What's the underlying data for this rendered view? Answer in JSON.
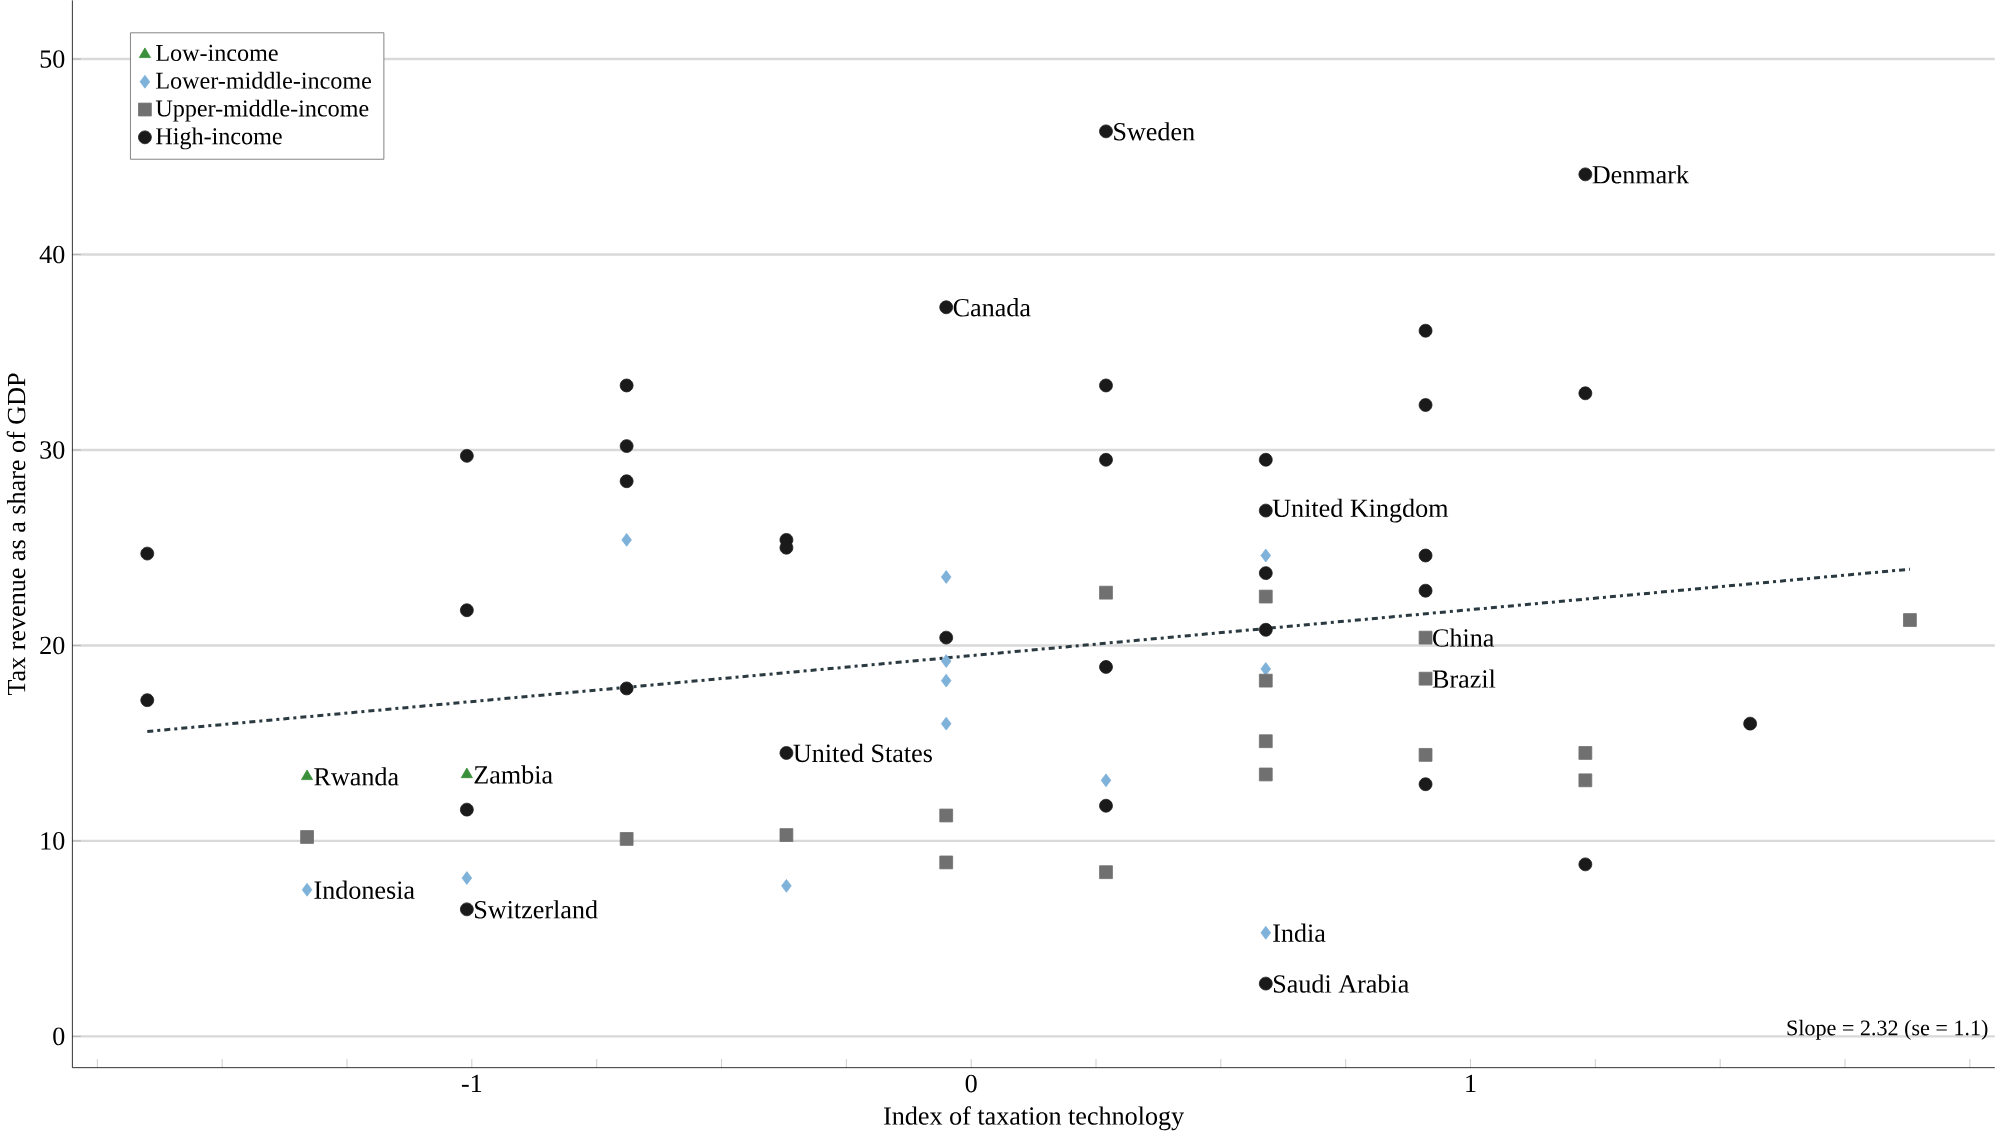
{
  "chart_data": {
    "type": "scatter",
    "xlabel": "Index of taxation technology",
    "ylabel": "Tax revenue as a share of GDP",
    "xlim": [
      -1.8,
      2.05
    ],
    "ylim": [
      -1.6,
      53
    ],
    "xticks": [
      {
        "value": -1.75,
        "label": null
      },
      {
        "value": -1.5,
        "label": null
      },
      {
        "value": -1.25,
        "label": null
      },
      -1,
      {
        "value": -0.75,
        "label": null
      },
      {
        "value": -0.5,
        "label": null
      },
      {
        "value": -0.25,
        "label": null
      },
      0,
      {
        "value": 0.25,
        "label": null
      },
      {
        "value": 0.5,
        "label": null
      },
      {
        "value": 0.75,
        "label": null
      },
      1,
      {
        "value": 1.25,
        "label": null
      },
      {
        "value": 1.5,
        "label": null
      },
      {
        "value": 1.75,
        "label": null
      },
      {
        "value": 2,
        "label": null
      }
    ],
    "yticks": [
      0,
      10,
      20,
      30,
      40,
      50
    ],
    "grid": "y",
    "legend": "top left",
    "series": [
      {
        "name": "Low-income",
        "color": "#3a8f3a",
        "marker": "triangle",
        "x": [
          -1.33,
          -1.01
        ],
        "values": [
          13.3,
          13.4
        ]
      },
      {
        "name": "Lower-middle-income",
        "color": "#7fb2d9",
        "marker": "diamond",
        "x": [
          -1.33,
          -1.01,
          -0.69,
          -0.37,
          -0.05,
          -0.05,
          -0.05,
          -0.05,
          0.27,
          0.59,
          0.59,
          0.59
        ],
        "values": [
          7.5,
          8.1,
          25.4,
          7.7,
          23.5,
          19.2,
          18.2,
          16.0,
          13.1,
          24.6,
          18.8,
          5.3
        ]
      },
      {
        "name": "Upper-middle-income",
        "color": "#707070",
        "marker": "square",
        "x": [
          -1.33,
          -0.69,
          -0.37,
          -0.05,
          -0.05,
          0.27,
          0.27,
          0.59,
          0.59,
          0.59,
          0.59,
          0.91,
          0.91,
          0.91,
          1.23,
          1.23,
          1.88
        ],
        "values": [
          10.2,
          10.1,
          10.3,
          11.3,
          8.9,
          22.7,
          8.4,
          22.5,
          18.2,
          15.1,
          13.4,
          20.4,
          18.3,
          14.4,
          14.5,
          13.1,
          21.3
        ]
      },
      {
        "name": "High-income",
        "color": "#1a1a1a",
        "marker": "circle",
        "x": [
          -1.65,
          -1.65,
          -1.01,
          -1.01,
          -1.01,
          -1.01,
          -0.69,
          -0.69,
          -0.69,
          -0.69,
          -0.37,
          -0.37,
          -0.37,
          -0.05,
          -0.05,
          0.27,
          0.27,
          0.27,
          0.27,
          0.27,
          0.59,
          0.59,
          0.59,
          0.59,
          0.59,
          0.91,
          0.91,
          0.91,
          0.91,
          0.91,
          1.23,
          1.23,
          1.23,
          1.56
        ],
        "values": [
          24.7,
          17.2,
          29.7,
          21.8,
          11.6,
          6.5,
          33.3,
          30.2,
          28.4,
          17.8,
          25.4,
          25.0,
          14.5,
          37.3,
          20.4,
          46.3,
          33.3,
          29.5,
          18.9,
          11.8,
          29.5,
          26.9,
          23.7,
          20.8,
          2.7,
          36.1,
          32.3,
          24.6,
          22.8,
          12.9,
          44.1,
          32.9,
          8.8,
          16.0
        ]
      },
      {
        "type": "line",
        "color": "#2a3a40",
        "marker": "none",
        "line_style": "dashed",
        "x": [
          -1.65,
          1.88
        ],
        "values": [
          15.6,
          23.9
        ]
      }
    ],
    "annotations": [
      {
        "text": "Sweden",
        "x": 0.27,
        "y": 46.3
      },
      {
        "text": "Denmark",
        "x": 1.23,
        "y": 44.1
      },
      {
        "text": "Canada",
        "x": -0.05,
        "y": 37.3
      },
      {
        "text": "United Kingdom",
        "x": 0.59,
        "y": 26.9
      },
      {
        "text": "China",
        "x": 0.91,
        "y": 20.4
      },
      {
        "text": "Brazil",
        "x": 0.91,
        "y": 18.3
      },
      {
        "text": "Rwanda",
        "x": -1.33,
        "y": 13.3
      },
      {
        "text": "Zambia",
        "x": -1.01,
        "y": 13.4
      },
      {
        "text": "United States",
        "x": -0.37,
        "y": 14.5
      },
      {
        "text": "Indonesia",
        "x": -1.33,
        "y": 7.5
      },
      {
        "text": "Switzerland",
        "x": -1.01,
        "y": 6.5
      },
      {
        "text": "India",
        "x": 0.59,
        "y": 5.3
      },
      {
        "text": "Saudi Arabia",
        "x": 0.59,
        "y": 2.7
      },
      "Slope = 2.32 (se = 1.1)"
    ]
  }
}
